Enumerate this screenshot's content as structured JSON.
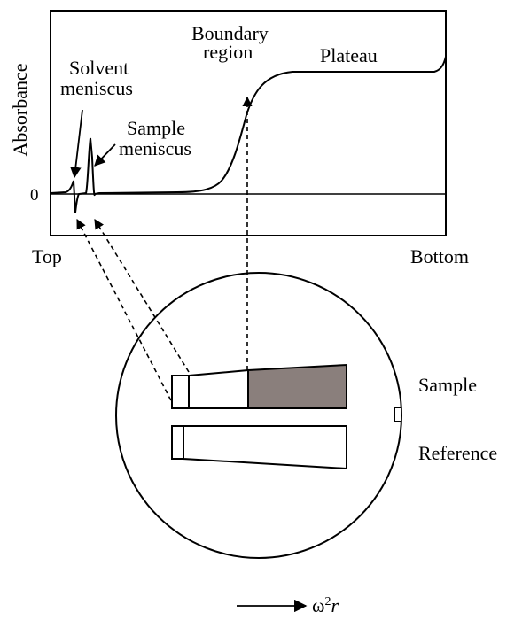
{
  "plot": {
    "ylabel": "Absorbance",
    "zero_tick": "0",
    "x_left": "Top",
    "x_right": "Bottom"
  },
  "annotations": {
    "solvent_line1": "Solvent",
    "solvent_line2": "meniscus",
    "sample_line1": "Sample",
    "sample_line2": "meniscus",
    "boundary_line1": "Boundary",
    "boundary_line2": "region",
    "plateau": "Plateau"
  },
  "cells": {
    "sample": "Sample",
    "reference": "Reference"
  },
  "axis_arrow": {
    "omega": "ω",
    "exp": "2",
    "r": "r"
  },
  "colors": {
    "line": "#000000",
    "sample_fill": "#8a7f7c",
    "background": "#ffffff"
  }
}
